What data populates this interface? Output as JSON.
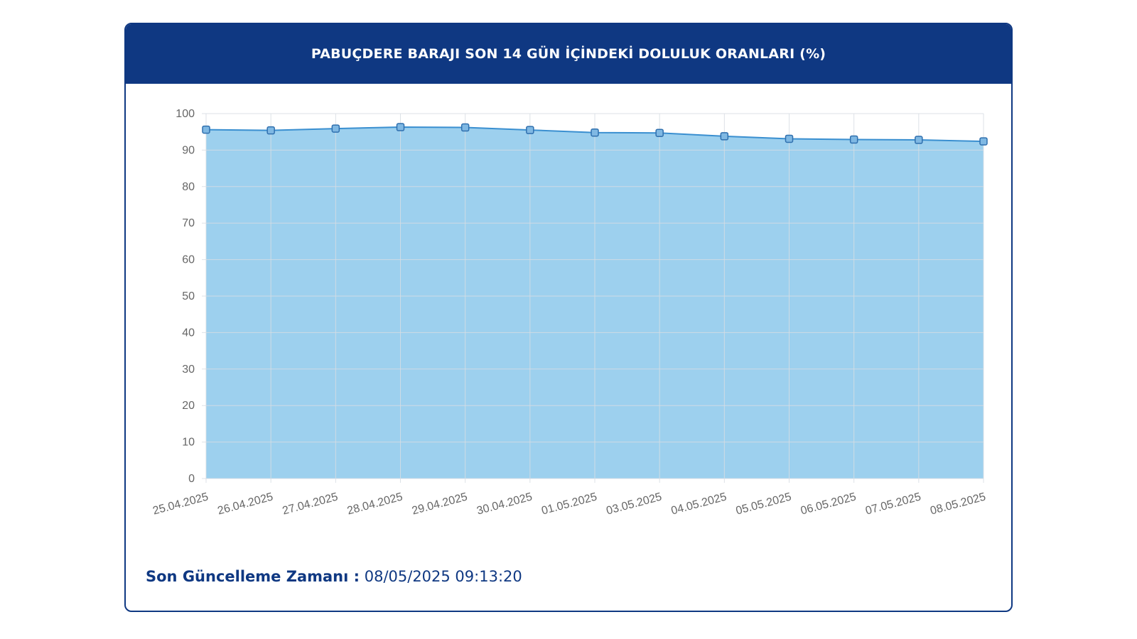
{
  "card": {
    "title": "PABUÇDERE BARAJI SON 14 GÜN İÇİNDEKİ DOLULUK ORANLARI (%)",
    "update_label": "Son Güncelleme Zamanı :",
    "update_value": "08/05/2025 09:13:20"
  },
  "colors": {
    "header": "#0f3882",
    "area_fill": "#9dd0ee",
    "line": "#3a8fd0",
    "point_fill": "#7fb8e3",
    "point_stroke": "#2f6fae",
    "grid": "#d7dde3"
  },
  "chart_data": {
    "type": "area",
    "title": "PABUÇDERE BARAJI SON 14 GÜN İÇİNDEKİ DOLULUK ORANLARI (%)",
    "xlabel": "",
    "ylabel": "",
    "ylim": [
      0,
      100
    ],
    "yticks": [
      0,
      10,
      20,
      30,
      40,
      50,
      60,
      70,
      80,
      90,
      100
    ],
    "categories": [
      "25.04.2025",
      "26.04.2025",
      "27.04.2025",
      "28.04.2025",
      "29.04.2025",
      "30.04.2025",
      "01.05.2025",
      "03.05.2025",
      "04.05.2025",
      "05.05.2025",
      "06.05.2025",
      "07.05.2025",
      "08.05.2025"
    ],
    "values": [
      95.6,
      95.4,
      95.9,
      96.3,
      96.2,
      95.5,
      94.8,
      94.7,
      93.8,
      93.1,
      92.9,
      92.8,
      92.4
    ],
    "grid": true,
    "legend": "none"
  }
}
